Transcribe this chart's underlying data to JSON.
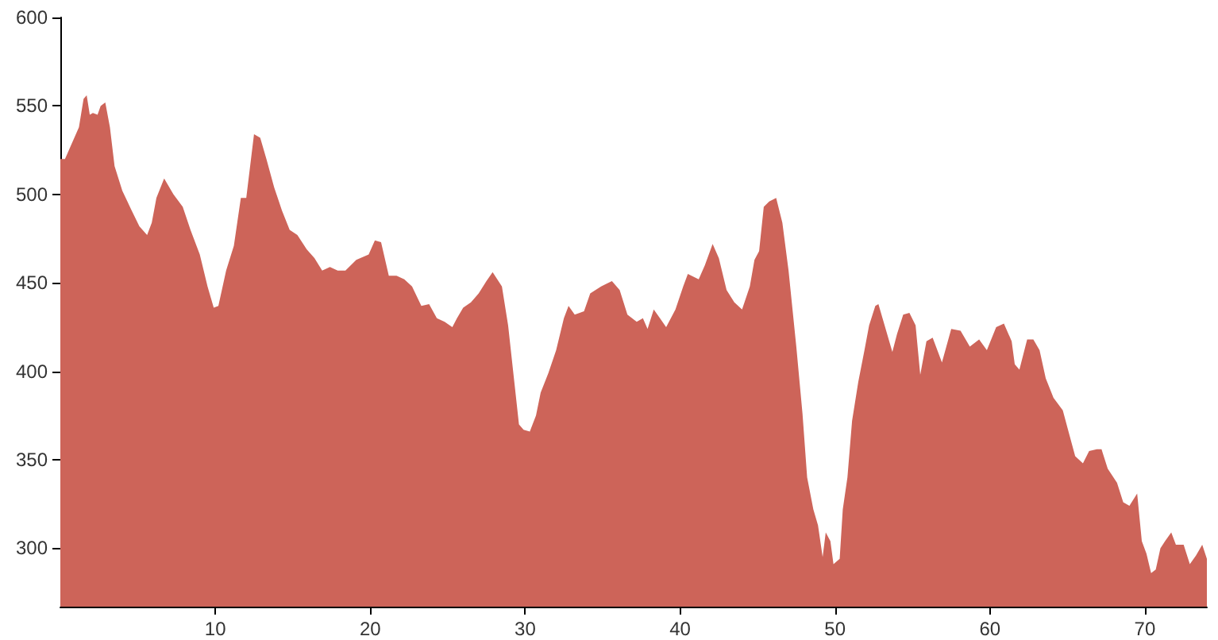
{
  "chart_data": {
    "type": "area",
    "xlim": [
      0,
      74
    ],
    "ylim": [
      267,
      600
    ],
    "xticks": [
      10,
      20,
      30,
      40,
      50,
      60,
      70
    ],
    "yticks": [
      300,
      350,
      400,
      450,
      500,
      550,
      600
    ],
    "grid": false,
    "marker": "none",
    "x": [
      0,
      0.3,
      0.75,
      1.2,
      1.5,
      1.7,
      1.9,
      2.1,
      2.4,
      2.6,
      2.9,
      3.2,
      3.5,
      4.0,
      4.6,
      5.1,
      5.6,
      5.9,
      6.2,
      6.7,
      7.3,
      7.9,
      8.4,
      9.0,
      9.5,
      9.9,
      10.2,
      10.7,
      11.2,
      11.65,
      12.0,
      12.5,
      12.9,
      13.3,
      13.8,
      14.3,
      14.8,
      15.3,
      15.9,
      16.4,
      16.9,
      17.4,
      17.9,
      18.4,
      19.1,
      19.9,
      20.3,
      20.7,
      21.2,
      21.7,
      22.2,
      22.7,
      23.3,
      23.8,
      24.3,
      24.8,
      25.3,
      25.6,
      26.0,
      26.5,
      27.0,
      27.5,
      27.9,
      28.5,
      28.9,
      29.3,
      29.6,
      29.9,
      30.3,
      30.7,
      31.0,
      31.5,
      32.0,
      32.5,
      32.8,
      33.2,
      33.8,
      34.2,
      34.9,
      35.6,
      36.1,
      36.6,
      37.2,
      37.6,
      37.9,
      38.3,
      38.7,
      39.1,
      39.7,
      40.2,
      40.5,
      41.2,
      41.6,
      42.1,
      42.5,
      43.0,
      43.5,
      44.0,
      44.5,
      44.8,
      45.1,
      45.4,
      45.75,
      46.2,
      46.6,
      47.0,
      47.5,
      47.9,
      48.2,
      48.6,
      48.9,
      49.2,
      49.4,
      49.7,
      49.9,
      50.3,
      50.5,
      50.8,
      51.1,
      51.5,
      51.9,
      52.2,
      52.6,
      52.8,
      53.2,
      53.7,
      54.0,
      54.4,
      54.8,
      55.2,
      55.5,
      55.9,
      56.3,
      56.9,
      57.5,
      58.1,
      58.7,
      59.3,
      59.8,
      60.4,
      60.9,
      61.4,
      61.6,
      61.9,
      62.4,
      62.8,
      63.2,
      63.6,
      64.1,
      64.7,
      65.1,
      65.5,
      66.0,
      66.4,
      66.9,
      67.2,
      67.6,
      68.2,
      68.6,
      69.0,
      69.5,
      69.8,
      70.1,
      70.4,
      70.7,
      71.0,
      71.3,
      71.7,
      72.0,
      72.5,
      72.9,
      73.3,
      73.7,
      74.0
    ],
    "series": [
      {
        "color": "#cd6459",
        "values": [
          520,
          520,
          529,
          538,
          554,
          556,
          545,
          546,
          545,
          550,
          552,
          538,
          516,
          502,
          491,
          482,
          477,
          484,
          498,
          509,
          500,
          493,
          480,
          466,
          448,
          436,
          437,
          457,
          471,
          498,
          498,
          534,
          532,
          520,
          504,
          491,
          480,
          477,
          469,
          464,
          457,
          459,
          457,
          457,
          463,
          466,
          474,
          473,
          454,
          454,
          452,
          448,
          437,
          438,
          430,
          428,
          425,
          430,
          436,
          439,
          444,
          451,
          456,
          448,
          426,
          394,
          370,
          367,
          366,
          375,
          388,
          399,
          412,
          430,
          437,
          432,
          434,
          444,
          448,
          451,
          446,
          432,
          428,
          430,
          424,
          435,
          430,
          425,
          435,
          448,
          455,
          452,
          460,
          472,
          464,
          446,
          439,
          435,
          448,
          463,
          468,
          493,
          496,
          498,
          484,
          457,
          414,
          376,
          340,
          322,
          313,
          295,
          309,
          304,
          291,
          294,
          322,
          340,
          372,
          394,
          412,
          426,
          437,
          438,
          426,
          411,
          421,
          432,
          433,
          426,
          398,
          417,
          419,
          405,
          424,
          423,
          414,
          418,
          412,
          425,
          427,
          417,
          404,
          401,
          418,
          418,
          412,
          396,
          385,
          378,
          365,
          352,
          348,
          355,
          356,
          356,
          345,
          337,
          326,
          324,
          331,
          304,
          297,
          286,
          288,
          300,
          304,
          309,
          302,
          302,
          291,
          296,
          302,
          294
        ]
      }
    ]
  }
}
